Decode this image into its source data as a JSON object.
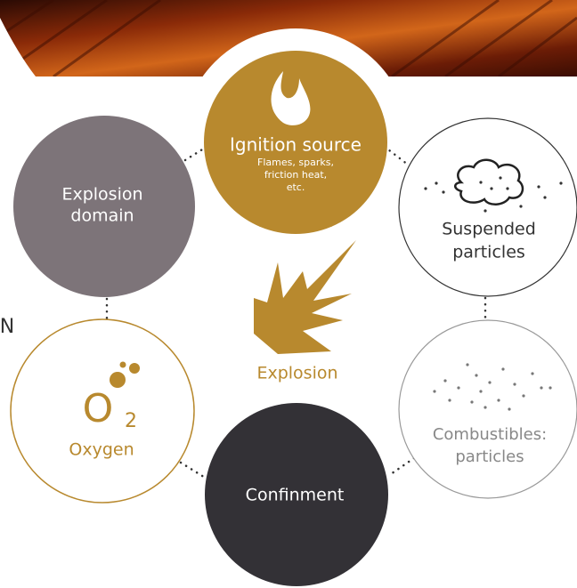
{
  "nodes": [
    {
      "label": "Ignition source",
      "details": [
        "Flames, sparks,",
        "friction heat,",
        "etc."
      ]
    },
    {
      "label": [
        "Explosion",
        "domain"
      ]
    },
    {
      "label": [
        "Suspended",
        "particles"
      ]
    },
    {
      "label": [
        "Combustibles:",
        "particles"
      ]
    },
    {
      "label": "Confinment"
    },
    {
      "label": "Oxygen",
      "formula": {
        "element": "O",
        "subscript": "2"
      }
    }
  ],
  "center": {
    "label": "Explosion"
  },
  "edge_text": "N"
}
